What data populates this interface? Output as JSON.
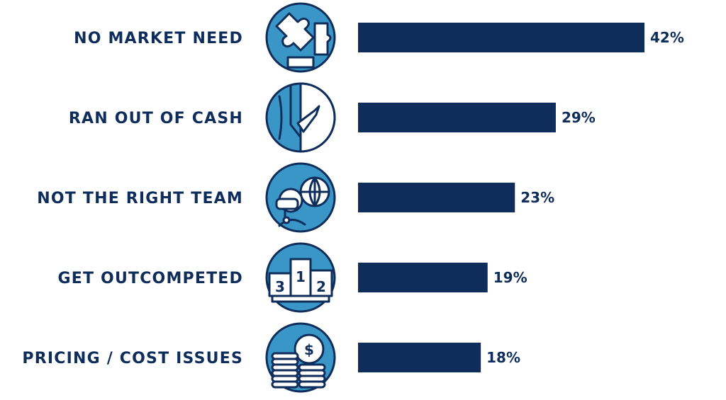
{
  "chart_data": {
    "type": "bar",
    "orientation": "horizontal",
    "categories": [
      "NO MARKET NEED",
      "RAN OUT OF CASH",
      "NOT THE RIGHT TEAM",
      "GET OUTCOMPETED",
      "PRICING / COST ISSUES"
    ],
    "values": [
      42,
      29,
      23,
      19,
      18
    ],
    "value_labels": [
      "42%",
      "29%",
      "23%",
      "19%",
      "18%"
    ],
    "icons": [
      "puzzle-icon",
      "suit-tie-icon",
      "person-globe-icon",
      "podium-icon",
      "coins-dollar-icon"
    ],
    "icon_text": {
      "podium": [
        "3",
        "1",
        "2"
      ],
      "coin": "$"
    },
    "xlim": [
      0,
      42
    ],
    "grid": false,
    "legend": "none",
    "colors": {
      "bar": "#0f2d5b",
      "text": "#0f2d5b",
      "icon_fill": "#3a96c7",
      "icon_outline": "#0f2d5b"
    }
  }
}
